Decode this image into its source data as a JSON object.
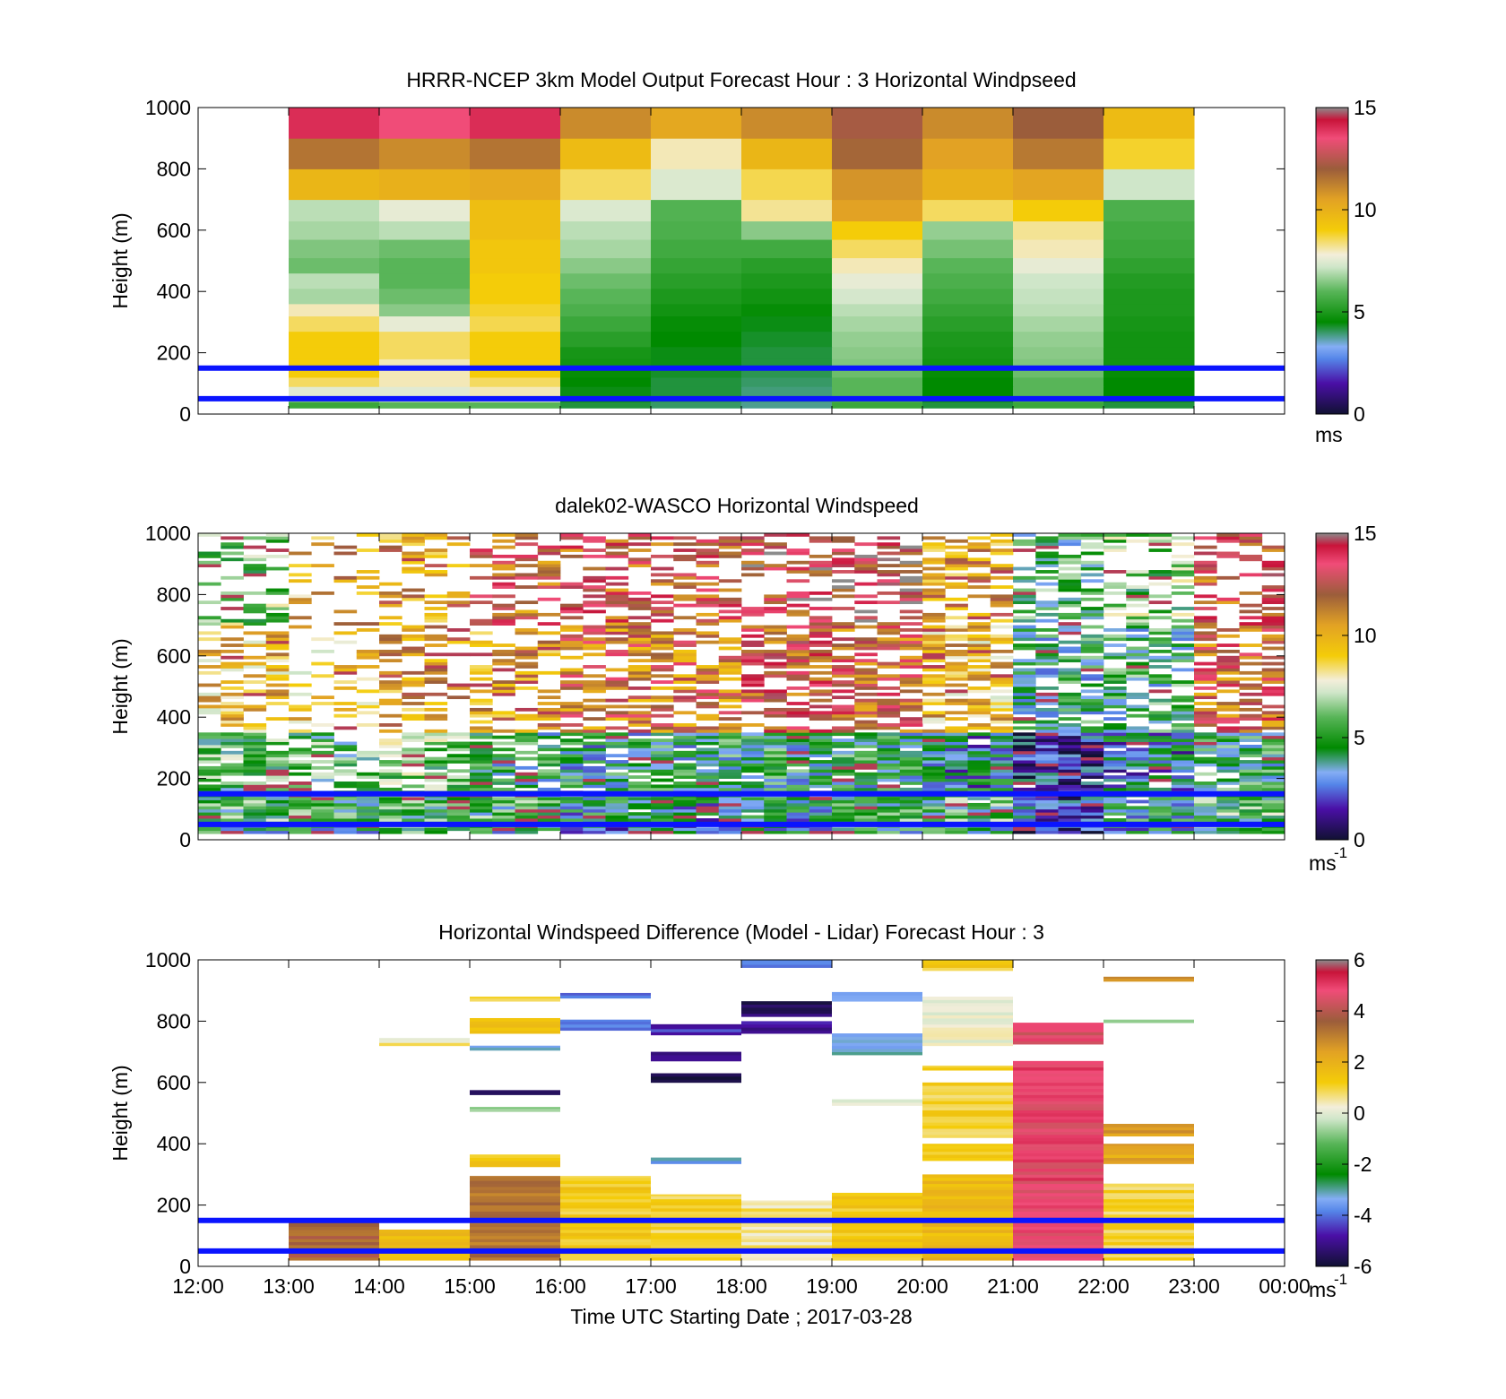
{
  "figure": {
    "xlabel": "Time UTC  Starting Date ; 2017-03-28",
    "x_ticks": [
      "12:00",
      "13:00",
      "14:00",
      "15:00",
      "16:00",
      "17:00",
      "18:00",
      "19:00",
      "20:00",
      "21:00",
      "22:00",
      "23:00",
      "00:00"
    ],
    "y_ticks": [
      "0",
      "200",
      "400",
      "600",
      "800",
      "1000"
    ],
    "ylabel": "Height (m)",
    "reference_lines_m": [
      50,
      150
    ],
    "reference_line_color": "#0a14ff"
  },
  "chart_data": [
    {
      "type": "heatmap",
      "title": "HRRR-NCEP 3km Model Output   Forecast Hour : 3 Horizontal Windpseed",
      "ylabel": "Height (m)",
      "ylim": [
        0,
        1000
      ],
      "xlim": [
        "12:00",
        "00:00"
      ],
      "colorbar": {
        "min": 0,
        "max": 15,
        "ticks": [
          "0",
          "5",
          "10",
          "15"
        ],
        "unit": "ms"
      },
      "x_hours": [
        13,
        14,
        15,
        16,
        17,
        18,
        19,
        20,
        21,
        22
      ],
      "level_bounds_m": [
        20,
        40,
        60,
        90,
        120,
        150,
        180,
        220,
        270,
        320,
        360,
        410,
        460,
        510,
        570,
        630,
        700,
        800,
        900,
        1000
      ],
      "values_ms": [
        [
          4.0,
          4.5,
          4.2,
          4.0,
          3.8,
          3.6,
          4.5,
          4.0,
          4.8,
          4.0
        ],
        [
          5.5,
          6.0,
          6.0,
          4.2,
          4.0,
          3.8,
          5.5,
          4.2,
          5.5,
          4.2
        ],
        [
          6.5,
          7.0,
          7.5,
          4.4,
          4.1,
          3.9,
          5.8,
          4.4,
          5.8,
          4.4
        ],
        [
          7.5,
          7.5,
          8.0,
          4.4,
          4.2,
          3.9,
          6.0,
          4.5,
          6.0,
          4.5
        ],
        [
          8.5,
          8.0,
          8.5,
          4.5,
          4.2,
          4.0,
          6.0,
          4.5,
          6.0,
          4.5
        ],
        [
          9.0,
          8.0,
          9.0,
          4.6,
          4.3,
          4.1,
          6.2,
          4.6,
          6.2,
          4.6
        ],
        [
          9.0,
          8.0,
          9.0,
          4.8,
          4.4,
          4.2,
          6.4,
          4.8,
          6.4,
          4.8
        ],
        [
          9.0,
          8.5,
          9.0,
          4.9,
          4.4,
          4.2,
          6.5,
          4.9,
          6.5,
          4.8
        ],
        [
          9.0,
          8.5,
          9.0,
          5.2,
          4.5,
          4.3,
          6.6,
          5.0,
          6.6,
          4.8
        ],
        [
          8.5,
          7.6,
          8.6,
          5.5,
          4.6,
          4.4,
          6.8,
          5.2,
          6.8,
          4.9
        ],
        [
          8.0,
          6.5,
          8.8,
          5.8,
          4.8,
          4.6,
          7.0,
          5.4,
          7.0,
          5.0
        ],
        [
          6.8,
          6.2,
          9.0,
          6.0,
          5.0,
          4.8,
          7.3,
          5.6,
          7.1,
          5.0
        ],
        [
          7.0,
          6.0,
          9.0,
          6.2,
          5.2,
          5.0,
          7.6,
          5.8,
          7.2,
          5.1
        ],
        [
          6.2,
          6.0,
          9.2,
          6.5,
          5.4,
          5.2,
          8.0,
          6.0,
          7.6,
          5.3
        ],
        [
          6.4,
          6.2,
          9.2,
          6.8,
          5.6,
          5.6,
          8.5,
          6.3,
          8.0,
          5.5
        ],
        [
          6.8,
          7.0,
          9.5,
          7.0,
          5.8,
          6.5,
          9.0,
          6.6,
          8.2,
          5.6
        ],
        [
          7.0,
          7.6,
          9.5,
          7.4,
          5.9,
          8.2,
          10.5,
          8.5,
          9.0,
          5.8
        ],
        [
          9.8,
          10.0,
          10.2,
          8.5,
          7.4,
          8.6,
          10.8,
          10.0,
          10.4,
          7.2
        ],
        [
          11.5,
          11.0,
          11.5,
          9.6,
          8.0,
          9.8,
          11.8,
          10.5,
          11.4,
          8.8
        ],
        [
          14.0,
          13.5,
          14.0,
          11.0,
          10.3,
          11.0,
          12.2,
          11.0,
          12.0,
          9.6
        ]
      ]
    },
    {
      "type": "heatmap",
      "title": "dalek02-WASCO  Horizontal Windspeed",
      "ylabel": "Height (m)",
      "ylim": [
        0,
        1000
      ],
      "xlim": [
        "12:00",
        "00:00"
      ],
      "colorbar": {
        "min": 0,
        "max": 15,
        "ticks": [
          "0",
          "5",
          "10",
          "15"
        ],
        "unit": "ms",
        "unit_sup": "-1"
      },
      "x_interval_minutes": 15,
      "start": "12:00",
      "end": "23:00",
      "bin_height_m": 10,
      "min_height_m": 20,
      "regime_by_hour": [
        {
          "hour": 12,
          "near_surface_ms": 4.6,
          "low_ms": 5.5,
          "mid_ms": 9.5,
          "upper_ms": 6.2,
          "coverage": 0.55
        },
        {
          "hour": 13,
          "near_surface_ms": 4.4,
          "low_ms": 5.4,
          "mid_ms": 9.0,
          "upper_ms": 10.0,
          "coverage": 0.25
        },
        {
          "hour": 14,
          "near_surface_ms": 5.0,
          "low_ms": 6.0,
          "mid_ms": 10.5,
          "upper_ms": 10.5,
          "coverage": 0.45
        },
        {
          "hour": 15,
          "near_surface_ms": 4.5,
          "low_ms": 4.6,
          "mid_ms": 10.5,
          "upper_ms": 12.0,
          "coverage": 0.45
        },
        {
          "hour": 16,
          "near_surface_ms": 3.4,
          "low_ms": 4.2,
          "mid_ms": 11.5,
          "upper_ms": 12.5,
          "coverage": 0.55
        },
        {
          "hour": 17,
          "near_surface_ms": 3.0,
          "low_ms": 4.5,
          "mid_ms": 11.5,
          "upper_ms": 12.5,
          "coverage": 0.6
        },
        {
          "hour": 18,
          "near_surface_ms": 3.4,
          "low_ms": 4.6,
          "mid_ms": 12.5,
          "upper_ms": 13.0,
          "coverage": 0.6
        },
        {
          "hour": 19,
          "near_surface_ms": 4.6,
          "low_ms": 4.6,
          "mid_ms": 12.0,
          "upper_ms": 13.5,
          "coverage": 0.6
        },
        {
          "hour": 20,
          "near_surface_ms": 4.6,
          "low_ms": 3.5,
          "mid_ms": 9.5,
          "upper_ms": 10.5,
          "coverage": 0.7
        },
        {
          "hour": 21,
          "near_surface_ms": 1.5,
          "low_ms": 1.8,
          "mid_ms": 4.5,
          "upper_ms": 5.0,
          "coverage": 0.75
        },
        {
          "hour": 22,
          "near_surface_ms": 3.8,
          "low_ms": 3.2,
          "mid_ms": 4.8,
          "upper_ms": 6.0,
          "coverage": 0.6
        },
        {
          "hour": 23,
          "near_surface_ms": 5.0,
          "low_ms": 4.8,
          "mid_ms": 12.0,
          "upper_ms": 12.5,
          "coverage": 0.55
        }
      ]
    },
    {
      "type": "heatmap",
      "title": "Horizontal Windspeed Difference (Model - Lidar) Forecast Hour : 3",
      "ylabel": "Height (m)",
      "xlabel": "Time UTC  Starting Date ; 2017-03-28",
      "ylim": [
        0,
        1000
      ],
      "xlim": [
        "12:00",
        "00:00"
      ],
      "colorbar": {
        "min": -6,
        "max": 6,
        "ticks": [
          "-6",
          "-4",
          "-2",
          "0",
          "2",
          "4",
          "6"
        ],
        "unit": "ms",
        "unit_sup": "-1"
      },
      "blocks": [
        {
          "t0": 13,
          "t1": 14,
          "y0": 20,
          "y1": 150,
          "value": 3.5
        },
        {
          "t0": 14,
          "t1": 15,
          "y0": 20,
          "y1": 120,
          "value": 1.5
        },
        {
          "t0": 14,
          "t1": 15,
          "y0": 720,
          "y1": 745,
          "value": 0.5
        },
        {
          "t0": 15,
          "t1": 16,
          "y0": 20,
          "y1": 295,
          "value": 3.2
        },
        {
          "t0": 15,
          "t1": 16,
          "y0": 325,
          "y1": 365,
          "value": 1.4
        },
        {
          "t0": 15,
          "t1": 16,
          "y0": 505,
          "y1": 520,
          "value": -0.6
        },
        {
          "t0": 15,
          "t1": 16,
          "y0": 560,
          "y1": 575,
          "value": -5.2
        },
        {
          "t0": 15,
          "t1": 16,
          "y0": 705,
          "y1": 720,
          "value": -3.2
        },
        {
          "t0": 15,
          "t1": 16,
          "y0": 760,
          "y1": 810,
          "value": 1.8
        },
        {
          "t0": 15,
          "t1": 16,
          "y0": 865,
          "y1": 880,
          "value": 1.2
        },
        {
          "t0": 16,
          "t1": 17,
          "y0": 20,
          "y1": 295,
          "value": 1.2
        },
        {
          "t0": 16,
          "t1": 17,
          "y0": 770,
          "y1": 805,
          "value": -3.8
        },
        {
          "t0": 16,
          "t1": 17,
          "y0": 875,
          "y1": 892,
          "value": -3.8
        },
        {
          "t0": 17,
          "t1": 18,
          "y0": 20,
          "y1": 235,
          "value": 1.0
        },
        {
          "t0": 17,
          "t1": 18,
          "y0": 335,
          "y1": 355,
          "value": -3.5
        },
        {
          "t0": 17,
          "t1": 18,
          "y0": 600,
          "y1": 630,
          "value": -5.8
        },
        {
          "t0": 17,
          "t1": 18,
          "y0": 670,
          "y1": 700,
          "value": -5.0
        },
        {
          "t0": 17,
          "t1": 18,
          "y0": 755,
          "y1": 790,
          "value": -4.6
        },
        {
          "t0": 18,
          "t1": 19,
          "y0": 20,
          "y1": 215,
          "value": 0.6
        },
        {
          "t0": 18,
          "t1": 19,
          "y0": 760,
          "y1": 800,
          "value": -4.8
        },
        {
          "t0": 18,
          "t1": 19,
          "y0": 815,
          "y1": 865,
          "value": -5.5
        },
        {
          "t0": 18,
          "t1": 19,
          "y0": 975,
          "y1": 1000,
          "value": -3.6
        },
        {
          "t0": 19,
          "t1": 20,
          "y0": 20,
          "y1": 240,
          "value": 1.3
        },
        {
          "t0": 19,
          "t1": 20,
          "y0": 525,
          "y1": 545,
          "value": -0.2
        },
        {
          "t0": 19,
          "t1": 20,
          "y0": 690,
          "y1": 760,
          "value": -3.3
        },
        {
          "t0": 19,
          "t1": 20,
          "y0": 865,
          "y1": 895,
          "value": -3.6
        },
        {
          "t0": 20,
          "t1": 21,
          "y0": 20,
          "y1": 300,
          "value": 1.8
        },
        {
          "t0": 20,
          "t1": 21,
          "y0": 345,
          "y1": 400,
          "value": 1.4
        },
        {
          "t0": 20,
          "t1": 21,
          "y0": 420,
          "y1": 600,
          "value": 1.1
        },
        {
          "t0": 20,
          "t1": 21,
          "y0": 640,
          "y1": 655,
          "value": 1.2
        },
        {
          "t0": 20,
          "t1": 21,
          "y0": 720,
          "y1": 880,
          "value": 0.2
        },
        {
          "t0": 20,
          "t1": 21,
          "y0": 965,
          "y1": 1000,
          "value": 1.1
        },
        {
          "t0": 21,
          "t1": 22,
          "y0": 20,
          "y1": 670,
          "value": 4.8
        },
        {
          "t0": 21,
          "t1": 22,
          "y0": 725,
          "y1": 795,
          "value": 4.6
        },
        {
          "t0": 22,
          "t1": 23,
          "y0": 20,
          "y1": 270,
          "value": 1.0
        },
        {
          "t0": 22,
          "t1": 23,
          "y0": 335,
          "y1": 400,
          "value": 2.2
        },
        {
          "t0": 22,
          "t1": 23,
          "y0": 425,
          "y1": 465,
          "value": 2.6
        },
        {
          "t0": 22,
          "t1": 23,
          "y0": 795,
          "y1": 805,
          "value": -0.4
        },
        {
          "t0": 22,
          "t1": 23,
          "y0": 930,
          "y1": 945,
          "value": 3.0
        }
      ]
    }
  ]
}
